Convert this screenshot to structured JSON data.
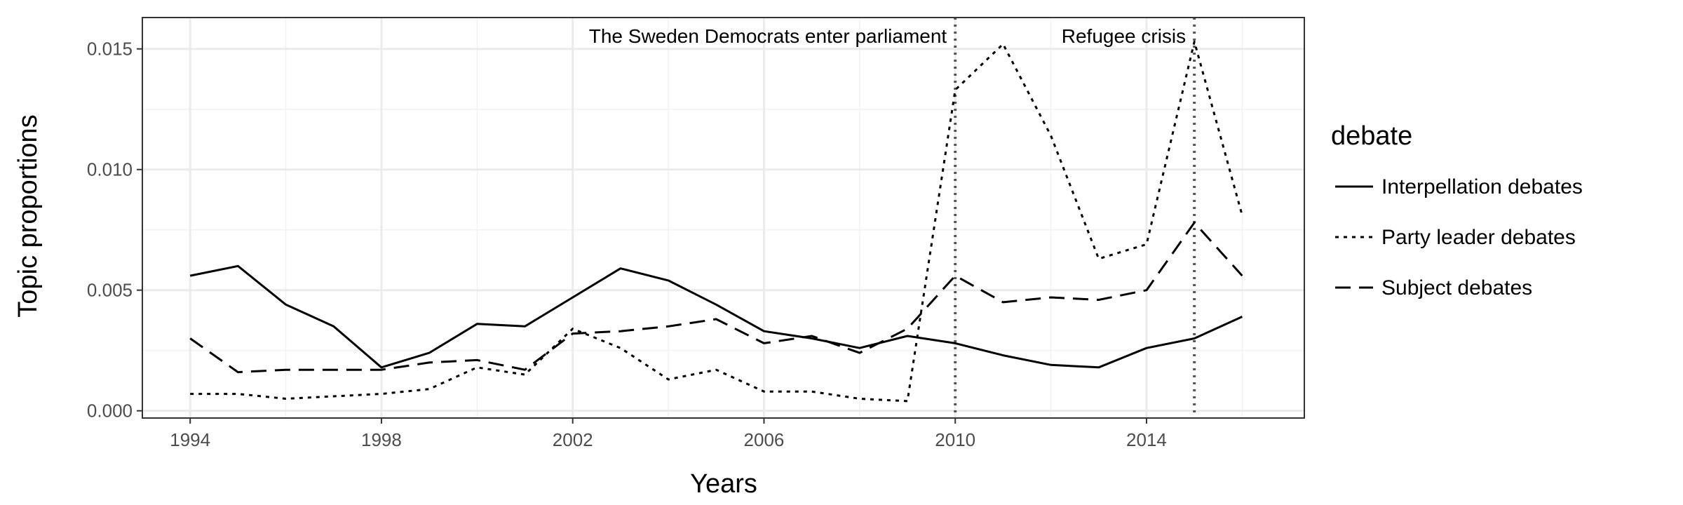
{
  "chart_data": {
    "type": "line",
    "xlabel": "Years",
    "ylabel": "Topic proportions",
    "xlim": [
      1993,
      2017.3
    ],
    "ylim": [
      -0.0003,
      0.0163
    ],
    "x_ticks": [
      1994,
      1998,
      2002,
      2006,
      2010,
      2014
    ],
    "y_ticks": [
      0.0,
      0.005,
      0.01,
      0.015
    ],
    "y_tick_labels": [
      "0.000",
      "0.005",
      "0.010",
      "0.015"
    ],
    "grid": true,
    "legend": {
      "title": "debate",
      "position": "right"
    },
    "x": [
      1994,
      1995,
      1996,
      1997,
      1998,
      1999,
      2000,
      2001,
      2002,
      2003,
      2004,
      2005,
      2006,
      2007,
      2008,
      2009,
      2010,
      2011,
      2012,
      2013,
      2014,
      2015,
      2016
    ],
    "series": [
      {
        "name": "Interpellation debates",
        "dash": "solid",
        "values": [
          0.0056,
          0.006,
          0.0044,
          0.0035,
          0.0018,
          0.0024,
          0.0036,
          0.0035,
          0.0047,
          0.0059,
          0.0054,
          0.0044,
          0.0033,
          0.003,
          0.0026,
          0.0031,
          0.0028,
          0.0023,
          0.0019,
          0.0018,
          0.0026,
          0.003,
          0.0039
        ]
      },
      {
        "name": "Party leader debates",
        "dash": "dotted",
        "values": [
          0.0007,
          0.0007,
          0.0005,
          0.0006,
          0.0007,
          0.0009,
          0.0018,
          0.0015,
          0.0034,
          0.0026,
          0.0013,
          0.0017,
          0.0008,
          0.0008,
          0.0005,
          0.0004,
          0.0133,
          0.0152,
          0.0114,
          0.0063,
          0.0069,
          0.0153,
          0.0081
        ]
      },
      {
        "name": "Subject debates",
        "dash": "dashed",
        "values": [
          0.003,
          0.0016,
          0.0017,
          0.0017,
          0.0017,
          0.002,
          0.0021,
          0.0017,
          0.0032,
          0.0033,
          0.0035,
          0.0038,
          0.0028,
          0.0031,
          0.0024,
          0.0034,
          0.0056,
          0.0045,
          0.0047,
          0.0046,
          0.005,
          0.0078,
          0.0056
        ]
      }
    ],
    "annotations": [
      {
        "x": 2010,
        "label": "The Sweden Democrats enter parliament"
      },
      {
        "x": 2015,
        "label": "Refugee crisis"
      }
    ]
  }
}
